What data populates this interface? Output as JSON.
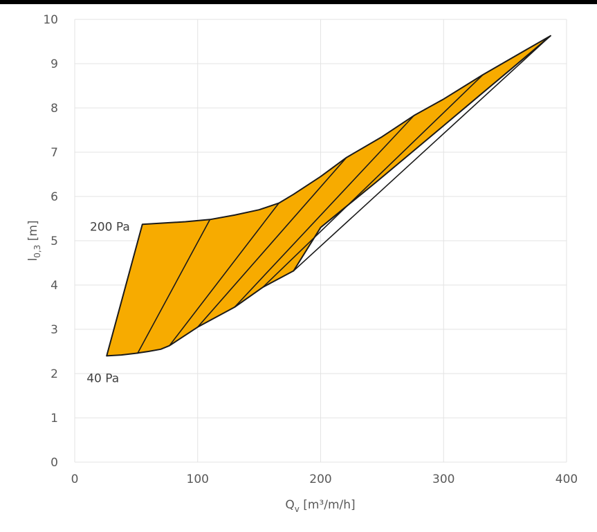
{
  "chart_data": {
    "type": "area",
    "xlabel": "Q",
    "xlabel_sub": "v",
    "xlabel_unit": " [m³/m/h]",
    "ylabel": "l",
    "ylabel_sub": "0,3",
    "ylabel_unit": " [m]",
    "xlim": [
      0,
      400
    ],
    "ylim": [
      0,
      10
    ],
    "xticks": [
      0,
      100,
      200,
      300,
      400
    ],
    "yticks": [
      0,
      1,
      2,
      3,
      4,
      5,
      6,
      7,
      8,
      9,
      10
    ],
    "grid": true,
    "fill_color": "#f7ab00",
    "line_color": "#1a1a1a",
    "region_outline": [
      [
        55,
        5.37
      ],
      [
        90,
        5.43
      ],
      [
        110,
        5.48
      ],
      [
        130,
        5.58
      ],
      [
        150,
        5.7
      ],
      [
        166,
        5.85
      ],
      [
        178,
        6.05
      ],
      [
        200,
        6.45
      ],
      [
        221,
        6.88
      ],
      [
        250,
        7.35
      ],
      [
        276,
        7.83
      ],
      [
        300,
        8.2
      ],
      [
        332,
        8.75
      ],
      [
        360,
        9.2
      ],
      [
        387,
        9.63
      ],
      [
        355,
        8.88
      ],
      [
        330,
        8.3
      ],
      [
        300,
        7.6
      ],
      [
        270,
        6.9
      ],
      [
        245,
        6.32
      ],
      [
        222,
        5.8
      ],
      [
        200,
        5.3
      ],
      [
        178,
        4.32
      ],
      [
        153,
        3.95
      ],
      [
        130,
        3.5
      ],
      [
        100,
        3.05
      ],
      [
        77,
        2.63
      ],
      [
        70,
        2.55
      ],
      [
        60,
        2.5
      ],
      [
        50,
        2.46
      ],
      [
        38,
        2.42
      ],
      [
        26,
        2.4
      ]
    ],
    "inner_lines": [
      [
        [
          51,
          2.45
        ],
        [
          110,
          5.48
        ]
      ],
      [
        [
          77,
          2.63
        ],
        [
          166,
          5.85
        ]
      ],
      [
        [
          100,
          3.05
        ],
        [
          221,
          6.88
        ]
      ],
      [
        [
          130,
          3.5
        ],
        [
          276,
          7.83
        ]
      ],
      [
        [
          153,
          3.95
        ],
        [
          332,
          8.75
        ]
      ],
      [
        [
          178,
          4.32
        ],
        [
          387,
          9.63
        ]
      ]
    ],
    "annotations": [
      {
        "text": "200 Pa",
        "x": 55,
        "y": 5.37
      },
      {
        "text": "40 Pa",
        "x": 26,
        "y": 2.4
      }
    ]
  }
}
